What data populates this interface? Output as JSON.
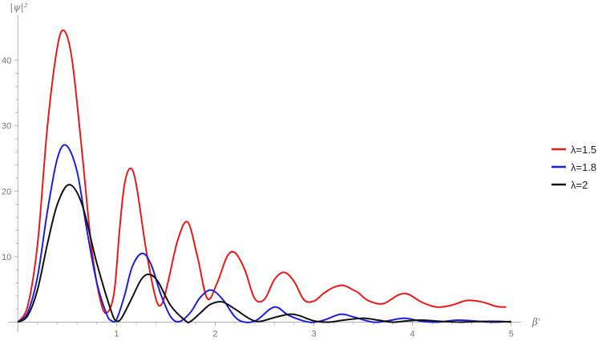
{
  "chart_data": {
    "type": "line",
    "xlabel": "β'",
    "ylabel": "|ψ|²",
    "xlim": [
      -0.1,
      5.1
    ],
    "ylim": [
      -0.8,
      47
    ],
    "xticks": [
      1,
      2,
      3,
      4,
      5
    ],
    "xtick_labels": [
      "1",
      "2",
      "3",
      "4",
      "5"
    ],
    "yticks": [
      10,
      20,
      30,
      40
    ],
    "ytick_labels": [
      "10",
      "20",
      "30",
      "40"
    ],
    "legend_position": "right",
    "series": [
      {
        "name": "λ=1.5",
        "color": "#e41a1c",
        "x": [
          0,
          0.1,
          0.2,
          0.3,
          0.4,
          0.47,
          0.55,
          0.65,
          0.75,
          0.85,
          0.92,
          0.98,
          1.03,
          1.08,
          1.14,
          1.2,
          1.3,
          1.4,
          1.46,
          1.52,
          1.62,
          1.72,
          1.82,
          1.92,
          2.02,
          2.12,
          2.2,
          2.3,
          2.4,
          2.5,
          2.6,
          2.7,
          2.8,
          2.9,
          3.0,
          3.1,
          3.2,
          3.3,
          3.4,
          3.45,
          3.55,
          3.7,
          3.85,
          3.95,
          4.1,
          4.25,
          4.4,
          4.55,
          4.7,
          4.85,
          4.95
        ],
        "y": [
          0,
          2.5,
          12,
          30,
          42,
          44.5,
          40,
          26,
          11,
          2.5,
          1.7,
          5,
          14,
          21,
          23.5,
          21,
          11,
          3.5,
          2.8,
          6,
          12.5,
          15.3,
          10,
          3.6,
          6,
          10,
          10.6,
          8,
          3.6,
          3.5,
          6.5,
          7.6,
          6.2,
          3.4,
          3.2,
          4.4,
          5.3,
          5.6,
          4.9,
          4.5,
          3.3,
          2.8,
          4.1,
          4.3,
          3.0,
          2.3,
          2.6,
          3.3,
          3.1,
          2.4,
          2.3
        ]
      },
      {
        "name": "λ=1.8",
        "color": "#1f1fd6",
        "x": [
          0,
          0.1,
          0.2,
          0.3,
          0.4,
          0.49,
          0.6,
          0.7,
          0.8,
          0.9,
          0.95,
          1.0,
          1.08,
          1.16,
          1.26,
          1.35,
          1.45,
          1.55,
          1.64,
          1.75,
          1.85,
          1.96,
          2.08,
          2.2,
          2.3,
          2.42,
          2.6,
          2.75,
          2.95,
          3.1,
          3.27,
          3.4,
          3.6,
          3.75,
          3.92,
          4.1,
          4.25,
          4.45,
          4.6,
          4.8,
          5.0
        ],
        "y": [
          0,
          1.5,
          7,
          17,
          25,
          27,
          23,
          14,
          6,
          1.2,
          0.2,
          0.4,
          4,
          8.5,
          10.5,
          8.8,
          4.2,
          0.8,
          0.1,
          1.5,
          3.8,
          4.9,
          3.4,
          0.8,
          0,
          0.3,
          2.3,
          1.0,
          0,
          0.3,
          1.2,
          0.8,
          0,
          0.2,
          0.6,
          0.1,
          0,
          0.3,
          0.2,
          0,
          0.1
        ]
      },
      {
        "name": "λ=2",
        "color": "#111111",
        "x": [
          0,
          0.1,
          0.2,
          0.3,
          0.4,
          0.52,
          0.65,
          0.8,
          0.95,
          1.0,
          1.05,
          1.15,
          1.25,
          1.33,
          1.42,
          1.55,
          1.7,
          1.75,
          1.85,
          1.95,
          2.07,
          2.2,
          2.35,
          2.45,
          2.6,
          2.75,
          2.85,
          3.0,
          3.15,
          3.3,
          3.5,
          3.65,
          3.8,
          3.95,
          4.1,
          4.3,
          4.5,
          4.7,
          4.9,
          5.0
        ],
        "y": [
          0,
          1,
          5,
          12,
          18,
          21,
          18,
          9,
          1.5,
          0.2,
          0.6,
          3.5,
          6.5,
          7.3,
          6.2,
          2.5,
          0.2,
          0.1,
          1.4,
          2.7,
          3.1,
          2.0,
          0.5,
          0.1,
          0.7,
          1.2,
          1.0,
          0.2,
          0,
          0.3,
          0.6,
          0.3,
          0,
          0.2,
          0.3,
          0.1,
          0,
          0.1,
          0.1,
          0
        ]
      }
    ]
  }
}
